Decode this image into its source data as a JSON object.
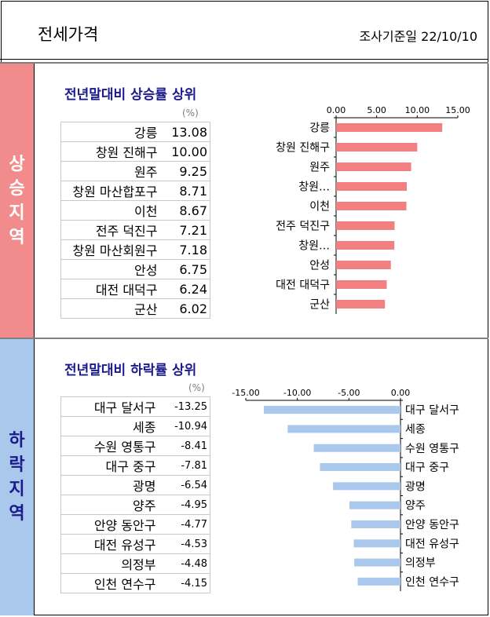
{
  "header": {
    "title": "전세가격",
    "date": "조사기준일 22/10/10"
  },
  "rise_section": {
    "label": [
      "상",
      "승",
      "지",
      "역"
    ],
    "subtitle": "전년말대비 상승률 상위",
    "unit": "(%)",
    "table": [
      {
        "name": "강릉",
        "value": "13.08"
      },
      {
        "name": "창원 진해구",
        "value": "10.00"
      },
      {
        "name": "원주",
        "value": "9.25"
      },
      {
        "name": "창원 마산합포구",
        "value": "8.71"
      },
      {
        "name": "이천",
        "value": "8.67"
      },
      {
        "name": "전주 덕진구",
        "value": "7.21"
      },
      {
        "name": "창원 마산회원구",
        "value": "7.18"
      },
      {
        "name": "안성",
        "value": "6.75"
      },
      {
        "name": "대전 대덕구",
        "value": "6.24"
      },
      {
        "name": "군산",
        "value": "6.02"
      }
    ]
  },
  "fall_section": {
    "label": [
      "하",
      "락",
      "지",
      "역"
    ],
    "subtitle": "전년말대비 하락률 상위",
    "unit": "(%)",
    "table": [
      {
        "name": "대구 달서구",
        "value": "-13.25"
      },
      {
        "name": "세종",
        "value": "-10.94"
      },
      {
        "name": "수원 영통구",
        "value": "-8.41"
      },
      {
        "name": "대구 중구",
        "value": "-7.81"
      },
      {
        "name": "광명",
        "value": "-6.54"
      },
      {
        "name": "양주",
        "value": "-4.95"
      },
      {
        "name": "안양 동안구",
        "value": "-4.77"
      },
      {
        "name": "대전 유성구",
        "value": "-4.53"
      },
      {
        "name": "의정부",
        "value": "-4.48"
      },
      {
        "name": "인천 연수구",
        "value": "-4.15"
      }
    ]
  },
  "colors": {
    "rise_bar": "#f28080",
    "fall_bar": "#a9c8ec",
    "title_blue": "#1a1a8c"
  },
  "chart_data": [
    {
      "type": "bar",
      "orientation": "horizontal",
      "categories": [
        "강릉",
        "창원 진해구",
        "원주",
        "창원…",
        "이천",
        "전주 덕진구",
        "창원…",
        "안성",
        "대전 대덕구",
        "군산"
      ],
      "values": [
        13.08,
        10.0,
        9.25,
        8.71,
        8.67,
        7.21,
        7.18,
        6.75,
        6.24,
        6.02
      ],
      "xlim": [
        0,
        15
      ],
      "xticks": [
        "0.00",
        "5.00",
        "10.00",
        "15.00"
      ],
      "axis_position": "top",
      "grid": false
    },
    {
      "type": "bar",
      "orientation": "horizontal",
      "categories": [
        "대구 달서구",
        "세종",
        "수원 영통구",
        "대구 중구",
        "광명",
        "양주",
        "안양 동안구",
        "대전 유성구",
        "의정부",
        "인천 연수구"
      ],
      "values": [
        -13.25,
        -10.94,
        -8.41,
        -7.81,
        -6.54,
        -4.95,
        -4.77,
        -4.53,
        -4.48,
        -4.15
      ],
      "xlim": [
        -15,
        0
      ],
      "xticks": [
        "-15.00",
        "-10.00",
        "-5.00",
        "0.00"
      ],
      "axis_position": "top",
      "grid": false
    }
  ]
}
